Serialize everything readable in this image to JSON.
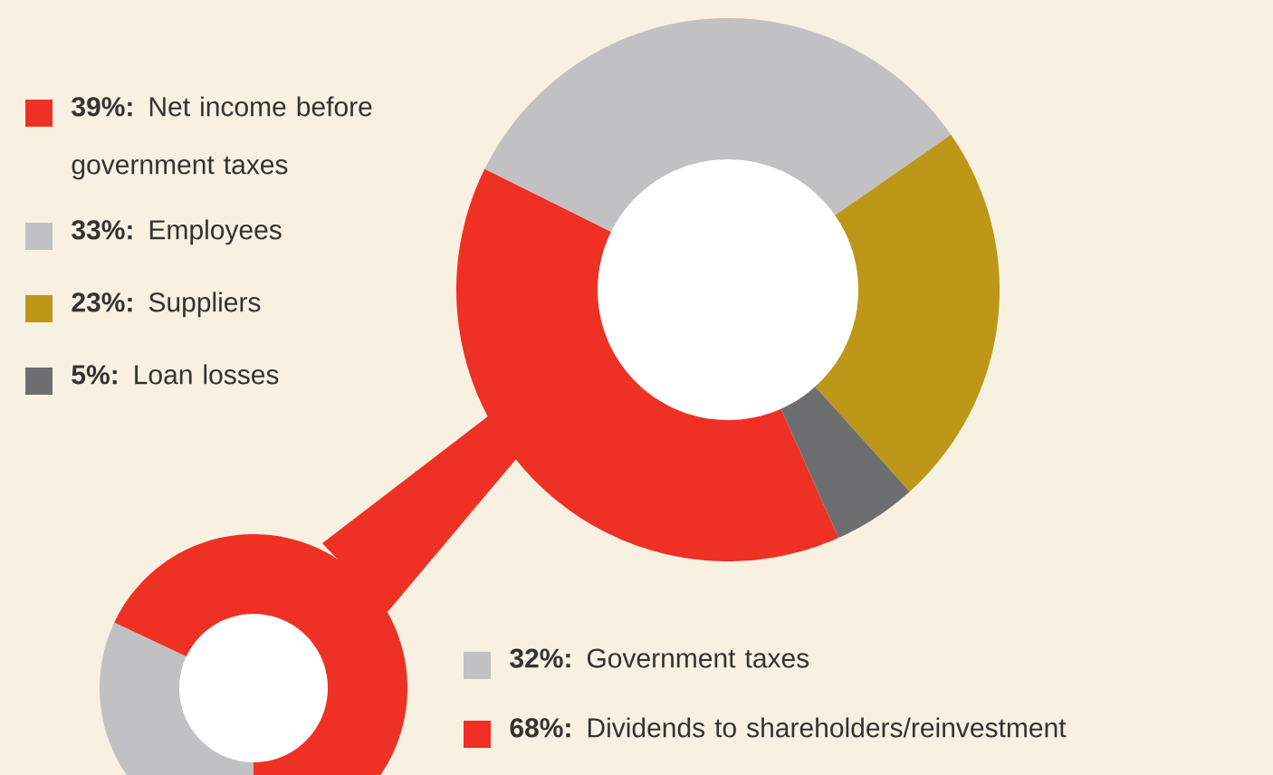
{
  "chart_data": [
    {
      "type": "donut",
      "categories": [
        "**39%:** Net income before government taxes",
        "**33%:** Employees",
        "**23%:** Suppliers",
        "**5%:** Loan losses"
      ],
      "values": [
        39,
        33,
        23,
        5
      ],
      "colors": [
        "#ee3124",
        "#c1c1c3",
        "#bd9718",
        "#6d6e70"
      ],
      "legend": "left"
    },
    {
      "type": "donut",
      "categories": [
        "**32%:** Government taxes",
        "**68%:** Dividends to shareholders/reinvestment"
      ],
      "values": [
        32,
        68
      ],
      "colors": [
        "#c1c1c3",
        "#ee3124"
      ],
      "legend": "right"
    }
  ]
}
